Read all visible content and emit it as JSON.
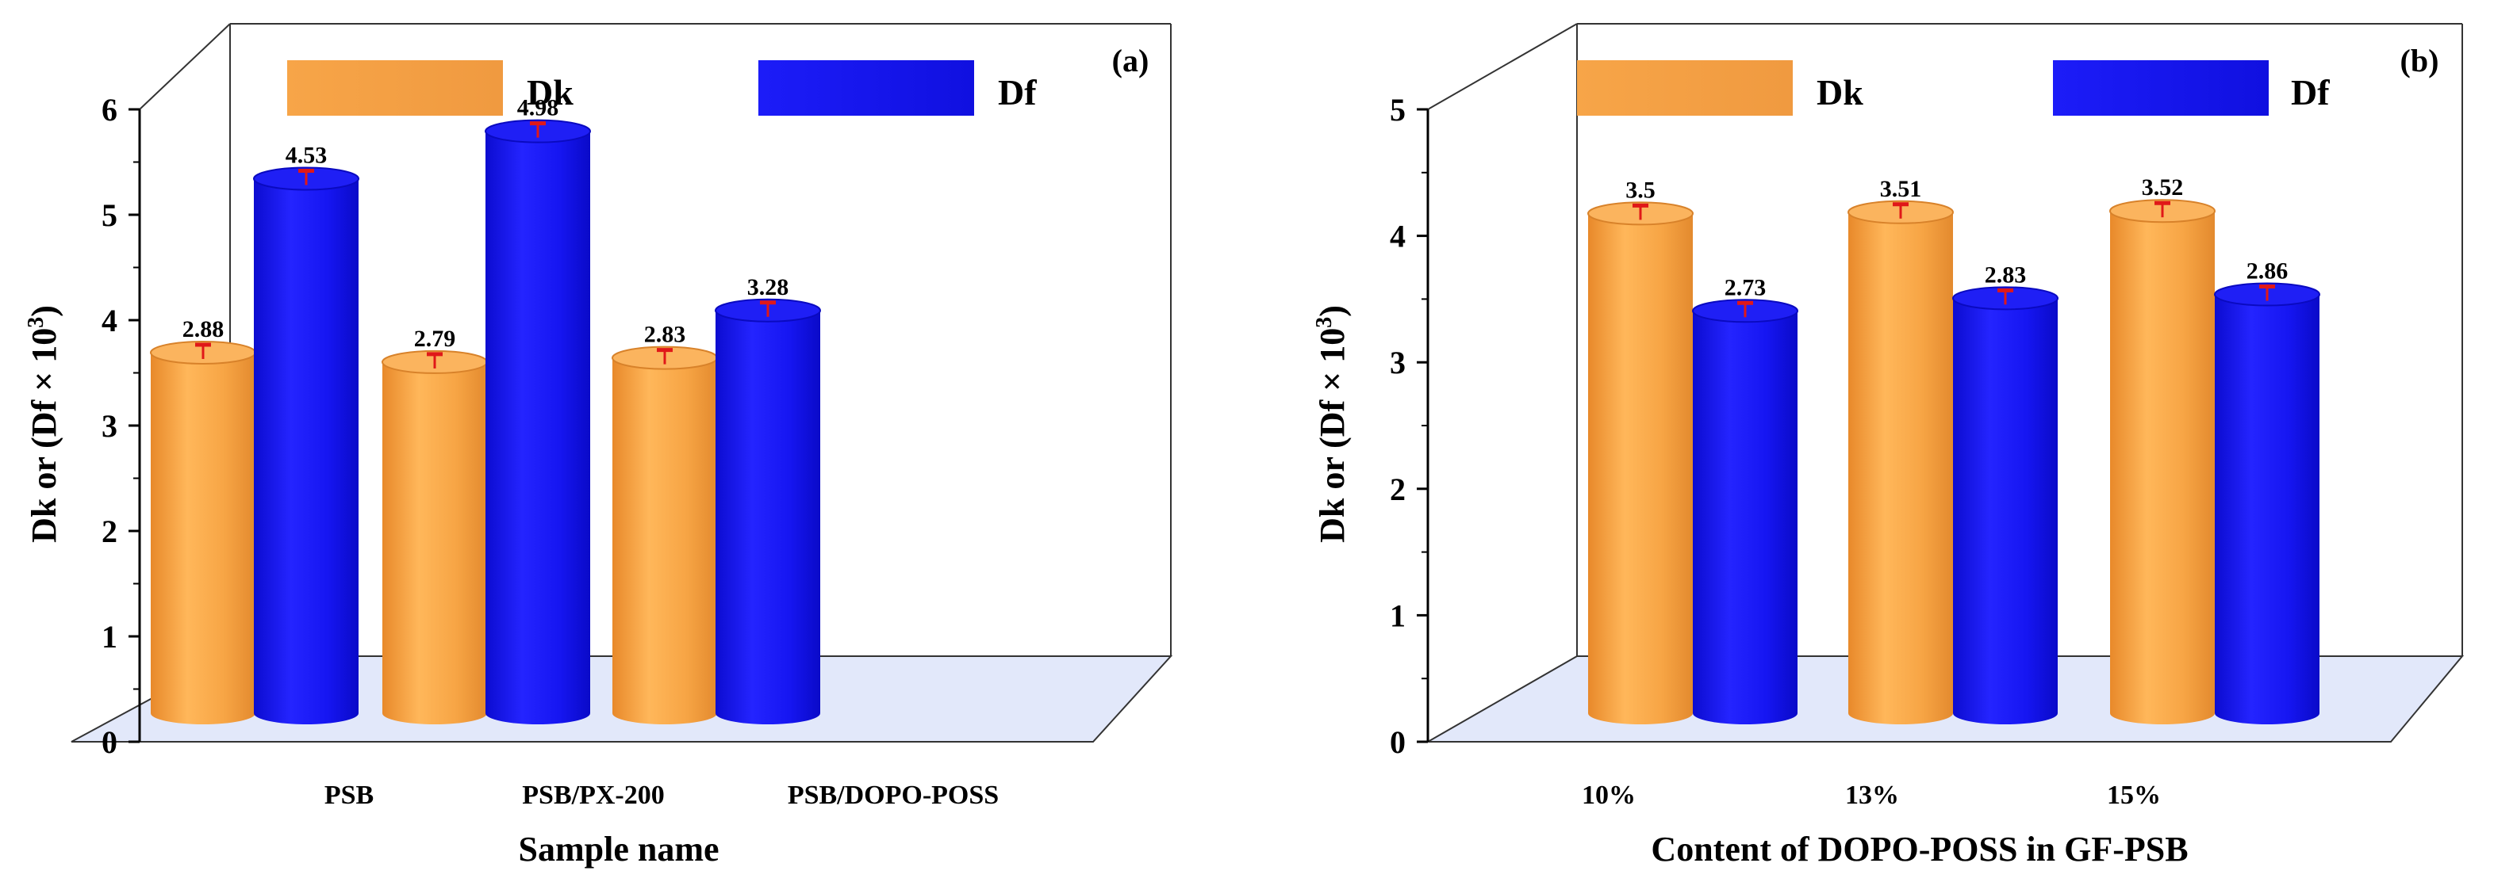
{
  "chart_data": [
    {
      "type": "bar",
      "panel_label": "(a)",
      "categories": [
        "PSB",
        "PSB/PX-200",
        "PSB/DOPO-POSS"
      ],
      "series": [
        {
          "name": "Dk",
          "color": "#f5a443",
          "values": [
            2.88,
            2.79,
            2.83
          ]
        },
        {
          "name": "Df",
          "color": "#1a1af0",
          "values": [
            4.53,
            4.98,
            3.28
          ]
        }
      ],
      "xlabel": "Sample name",
      "ylabel_main": "Dk or (Df × 10",
      "ylabel_sup": "3",
      "ylabel_end": ")",
      "ylim": [
        0,
        6
      ],
      "yticks": [
        "0",
        "1",
        "2",
        "3",
        "4",
        "5",
        "6"
      ],
      "grid": false,
      "legend": "top"
    },
    {
      "type": "bar",
      "panel_label": "(b)",
      "categories": [
        "10%",
        "13%",
        "15%"
      ],
      "series": [
        {
          "name": "Dk",
          "color": "#f5a443",
          "values": [
            3.5,
            3.51,
            3.52
          ]
        },
        {
          "name": "Df",
          "color": "#1a1af0",
          "values": [
            2.73,
            2.83,
            2.86
          ]
        }
      ],
      "xlabel": "Content of DOPO-POSS in GF-PSB",
      "ylabel_main": "Dk or (Df × 10",
      "ylabel_sup": "3",
      "ylabel_end": ")",
      "ylim": [
        0,
        5
      ],
      "yticks": [
        "0",
        "1",
        "2",
        "3",
        "4",
        "5"
      ],
      "grid": false,
      "legend": "top"
    }
  ]
}
